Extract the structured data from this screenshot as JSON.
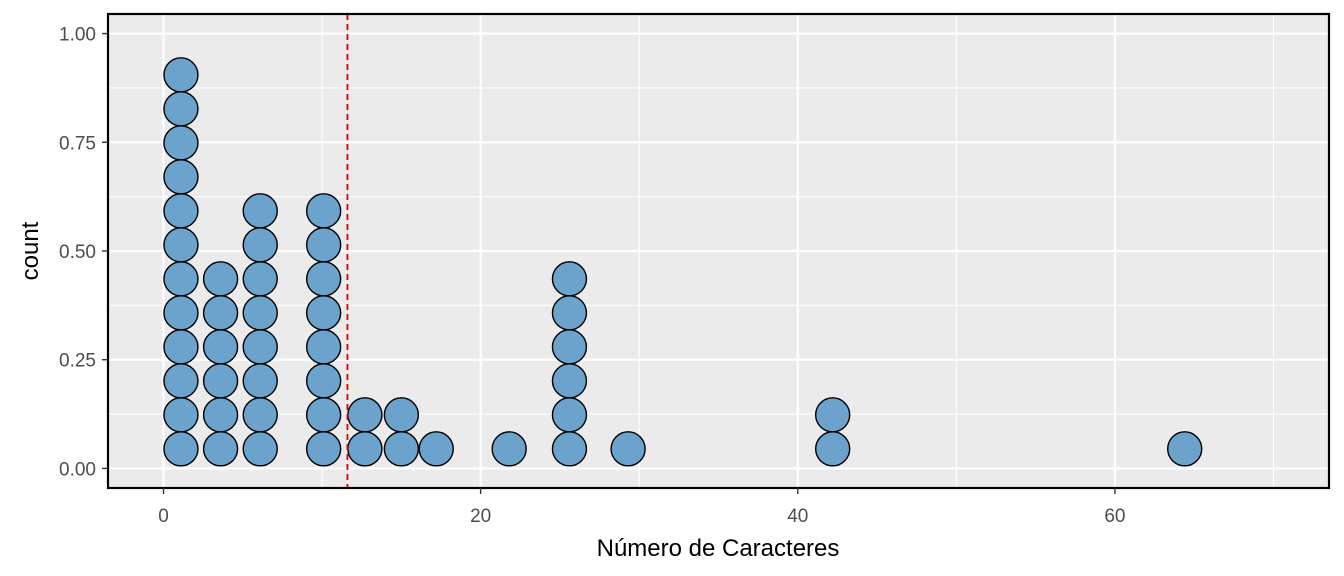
{
  "chart_data": {
    "type": "scatter",
    "subtype": "dotplot",
    "title": "",
    "xlabel": "Número de Caracteres",
    "ylabel": "count",
    "xlim": [
      -3.5,
      73.5
    ],
    "ylim": [
      -0.045,
      1.045
    ],
    "x_ticks": [
      0,
      20,
      40,
      60
    ],
    "x_tick_labels": [
      "0",
      "20",
      "40",
      "60"
    ],
    "y_ticks": [
      0.0,
      0.25,
      0.5,
      0.75,
      1.0
    ],
    "y_tick_labels": [
      "0.00",
      "0.25",
      "0.50",
      "0.75",
      "1.00"
    ],
    "grid": true,
    "reference_line": {
      "x": 11.6,
      "color": "#dd0000",
      "style": "dashed"
    },
    "dot_fill": "#6ba3cc",
    "dot_stroke": "#000000",
    "panel_background": "#ebebeb",
    "stack_positions": [
      {
        "x": 1.1,
        "count": 12
      },
      {
        "x": 3.6,
        "count": 6
      },
      {
        "x": 6.1,
        "count": 8
      },
      {
        "x": 10.1,
        "count": 8
      },
      {
        "x": 12.7,
        "count": 2
      },
      {
        "x": 15.0,
        "count": 2
      },
      {
        "x": 17.2,
        "count": 1
      },
      {
        "x": 21.8,
        "count": 1
      },
      {
        "x": 25.6,
        "count": 6
      },
      {
        "x": 29.3,
        "count": 1
      },
      {
        "x": 42.2,
        "count": 2
      },
      {
        "x": 64.4,
        "count": 1
      }
    ]
  }
}
